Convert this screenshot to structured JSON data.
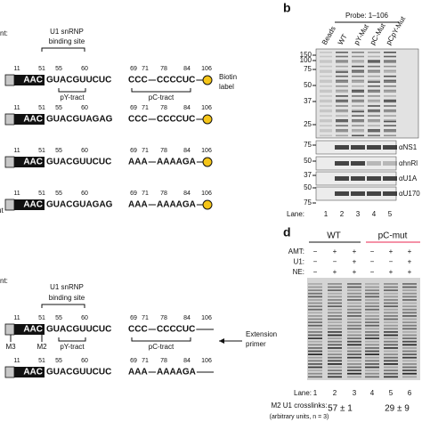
{
  "panel_a": {
    "nt_label": "nt:",
    "binding_site": [
      "U1 snRNP",
      "binding site"
    ],
    "box_label": "AAC",
    "positions": [
      11,
      51,
      55,
      60,
      69,
      71,
      78,
      84,
      106
    ],
    "py_tract": "pY-tract",
    "pc_tract": "pC-tract",
    "biotin_label": [
      "Biotin",
      "label"
    ],
    "side_label": "ut",
    "side_label_color": "#9b30c8",
    "constructs": [
      {
        "segments": [
          {
            "text": "GUACG",
            "color": "#111111"
          },
          {
            "text": "UUCUC",
            "color": "#2436d0"
          },
          {
            "text": "CCC",
            "color": "#e8254f"
          },
          {
            "text": "CCCCUC",
            "color": "#e8254f"
          }
        ]
      },
      {
        "segments": [
          {
            "text": "GUACGU",
            "color": "#111111"
          },
          {
            "text": "AGAG",
            "color": "#9a9a9a"
          },
          {
            "text": "CCC",
            "color": "#e8254f"
          },
          {
            "text": "CCCCUC",
            "color": "#e8254f"
          }
        ]
      },
      {
        "segments": [
          {
            "text": "GUACG",
            "color": "#111111"
          },
          {
            "text": "UUCUC",
            "color": "#2436d0"
          },
          {
            "text": "AAA",
            "color": "#9a9a9a"
          },
          {
            "text": "AAAAGA",
            "color": "#9a9a9a"
          }
        ]
      },
      {
        "segments": [
          {
            "text": "GUACGU",
            "color": "#111111"
          },
          {
            "text": "AGAG",
            "color": "#9a9a9a"
          },
          {
            "text": "AAA",
            "color": "#9a9a9a"
          },
          {
            "text": "AAAAGA",
            "color": "#9a9a9a"
          }
        ]
      }
    ]
  },
  "panel_c": {
    "nt_label": "nt:",
    "binding_site": [
      "U1 snRNP",
      "binding site"
    ],
    "box_label": "AAC",
    "positions": [
      11,
      51,
      55,
      60,
      69,
      71,
      78,
      84,
      106
    ],
    "marker_labels": [
      "M3",
      "M2"
    ],
    "py_tract": "pY-tract",
    "pc_tract": "pC-tract",
    "primer_label": [
      "Extension",
      "primer"
    ],
    "constructs": [
      {
        "segments": [
          {
            "text": "GUACG",
            "color": "#111111"
          },
          {
            "text": "UUCUC",
            "color": "#2436d0"
          },
          {
            "text": "CCC",
            "color": "#e8254f"
          },
          {
            "text": "CCCCUC",
            "color": "#e8254f"
          }
        ]
      },
      {
        "segments": [
          {
            "text": "GUACG",
            "color": "#111111"
          },
          {
            "text": "UUCUC",
            "color": "#2436d0"
          },
          {
            "text": "AAA",
            "color": "#9a9a9a"
          },
          {
            "text": "AAAAGA",
            "color": "#9a9a9a"
          }
        ]
      }
    ]
  },
  "panel_b": {
    "letter": "b",
    "probe_label": "Probe: 1–106",
    "lanes_header": [
      {
        "text": "Beads",
        "color": "#111111"
      },
      {
        "text": "WT",
        "color": "#111111"
      },
      {
        "text": "pY-Mut",
        "color": "#2436d0"
      },
      {
        "text": "pC-Mut",
        "color": "#e8254f"
      },
      {
        "text": "pCpY-Mut",
        "color": "#9b30c8"
      }
    ],
    "size_markers": [
      150,
      100,
      75,
      50,
      37,
      25
    ],
    "blot_markers": [
      75,
      50,
      37,
      50,
      75
    ],
    "antibodies": [
      {
        "text": "αNS1",
        "color": "#2436d0"
      },
      {
        "text": "αhnRl",
        "color": "#e8254f"
      },
      {
        "text": "αU1A",
        "color": "#111111"
      },
      {
        "text": "αU170",
        "color": "#111111"
      }
    ],
    "lane_label": "Lane:",
    "lane_numbers": [
      1,
      2,
      3,
      4,
      5
    ]
  },
  "panel_d": {
    "letter": "d",
    "groups": [
      {
        "text": "WT",
        "color": "#111111"
      },
      {
        "text": "pC-mut",
        "color": "#e8254f"
      }
    ],
    "conditions": [
      {
        "label": "AMT:",
        "marks": [
          "−",
          "+",
          "+",
          "−",
          "+",
          "+"
        ]
      },
      {
        "label": "U1:",
        "marks": [
          "−",
          "−",
          "+",
          "−",
          "−",
          "+"
        ]
      },
      {
        "label": "NE:",
        "marks": [
          "−",
          "+",
          "+",
          "−",
          "+",
          "+"
        ]
      }
    ],
    "lane_label": "Lane:",
    "lane_numbers": [
      1,
      2,
      3,
      4,
      5,
      6
    ],
    "quant_label": "M2 U1 crosslinks:",
    "quant_note": "(arbitrary units, n = 3)",
    "quant_values": [
      "57 ± 1",
      "29 ± 9"
    ]
  }
}
